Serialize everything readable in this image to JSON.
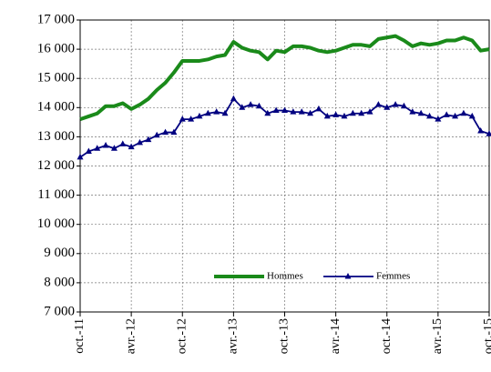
{
  "chart_data": {
    "type": "line",
    "categories": [
      "oct.-11",
      null,
      null,
      null,
      null,
      null,
      "avr.-12",
      null,
      null,
      null,
      null,
      null,
      "oct.-12",
      null,
      null,
      null,
      null,
      null,
      "avr.-13",
      null,
      null,
      null,
      null,
      null,
      "oct.-13",
      null,
      null,
      null,
      null,
      null,
      "avr.-14",
      null,
      null,
      null,
      null,
      null,
      "oct.-14",
      null,
      null,
      null,
      null,
      null,
      "avr.-15",
      null,
      null,
      null,
      null,
      null,
      "oct.-15"
    ],
    "series": [
      {
        "name": "Hommes",
        "color": "#1a8a1a",
        "values": [
          13600,
          13700,
          13800,
          14050,
          14050,
          14150,
          13950,
          14100,
          14300,
          14600,
          14850,
          15200,
          15600,
          15600,
          15600,
          15650,
          15750,
          15800,
          16250,
          16050,
          15950,
          15900,
          15650,
          15950,
          15900,
          16100,
          16100,
          16050,
          15950,
          15900,
          15950,
          16050,
          16150,
          16150,
          16100,
          16350,
          16400,
          16450,
          16300,
          16100,
          16200,
          16150,
          16200,
          16300,
          16300,
          16400,
          16300,
          15950,
          16000
        ]
      },
      {
        "name": "Femmes",
        "color": "#000080",
        "values": [
          12300,
          12500,
          12600,
          12700,
          12600,
          12750,
          12650,
          12800,
          12900,
          13050,
          13150,
          13150,
          13600,
          13600,
          13700,
          13800,
          13850,
          13800,
          14300,
          14000,
          14100,
          14050,
          13800,
          13900,
          13900,
          13850,
          13850,
          13800,
          13950,
          13700,
          13750,
          13700,
          13800,
          13800,
          13850,
          14100,
          14000,
          14100,
          14050,
          13850,
          13800,
          13700,
          13600,
          13750,
          13700,
          13800,
          13700,
          13200,
          13100
        ]
      }
    ],
    "ylim": [
      7000,
      17000
    ],
    "yticks": [
      {
        "value": 7000,
        "label": "7 000"
      },
      {
        "value": 8000,
        "label": "8 000"
      },
      {
        "value": 9000,
        "label": "9 000"
      },
      {
        "value": 10000,
        "label": "10 000"
      },
      {
        "value": 11000,
        "label": "11 000"
      },
      {
        "value": 12000,
        "label": "12 000"
      },
      {
        "value": 13000,
        "label": "13 000"
      },
      {
        "value": 14000,
        "label": "14 000"
      },
      {
        "value": 15000,
        "label": "15 000"
      },
      {
        "value": 16000,
        "label": "16 000"
      },
      {
        "value": 17000,
        "label": "17 000"
      }
    ],
    "grid": true
  }
}
